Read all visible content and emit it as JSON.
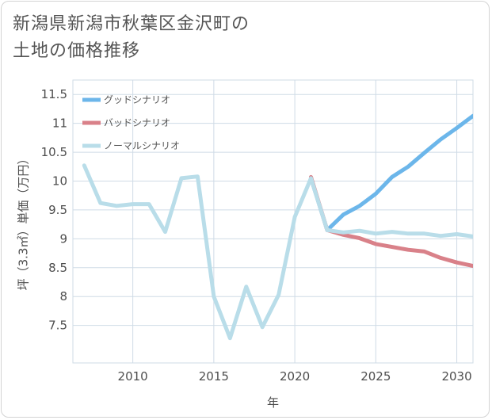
{
  "title_lines": [
    "新潟県新潟市秋葉区金沢町の",
    "土地の価格推移"
  ],
  "chart_data": {
    "type": "line",
    "xlabel": "年",
    "ylabel": "坪（3.3㎡）単価（万円）",
    "xlim": [
      2006.3,
      2031
    ],
    "ylim": [
      6.85,
      11.75
    ],
    "x_ticks": [
      2010,
      2015,
      2020,
      2025,
      2030
    ],
    "y_ticks": [
      7.5,
      8,
      8.5,
      9,
      9.5,
      10,
      10.5,
      11,
      11.5
    ],
    "legend_position": "top-left",
    "series": [
      {
        "name": "グッドシナリオ",
        "color": "#6cb6ea",
        "x": [
          2021,
          2022,
          2023,
          2024,
          2025,
          2026,
          2027,
          2028,
          2029,
          2030,
          2031
        ],
        "values": [
          10.05,
          9.15,
          9.42,
          9.57,
          9.78,
          10.07,
          10.25,
          10.49,
          10.72,
          10.92,
          11.13
        ]
      },
      {
        "name": "バッドシナリオ",
        "color": "#d98189",
        "x": [
          2021,
          2022,
          2023,
          2024,
          2025,
          2026,
          2027,
          2028,
          2029,
          2030,
          2031
        ],
        "values": [
          10.07,
          9.15,
          9.07,
          9.01,
          8.91,
          8.86,
          8.81,
          8.78,
          8.67,
          8.59,
          8.53
        ]
      },
      {
        "name": "ノーマルシナリオ",
        "color": "#b9dde9",
        "x": [
          2007,
          2008,
          2009,
          2010,
          2011,
          2012,
          2013,
          2014,
          2015,
          2016,
          2017,
          2018,
          2019,
          2020,
          2021,
          2022,
          2023,
          2024,
          2025,
          2026,
          2027,
          2028,
          2029,
          2030,
          2031
        ],
        "values": [
          10.27,
          9.62,
          9.57,
          9.6,
          9.6,
          9.12,
          10.05,
          10.08,
          8.0,
          7.28,
          8.17,
          7.47,
          8.03,
          9.38,
          10.05,
          9.15,
          9.11,
          9.14,
          9.09,
          9.12,
          9.09,
          9.09,
          9.05,
          9.08,
          9.04
        ]
      }
    ]
  }
}
